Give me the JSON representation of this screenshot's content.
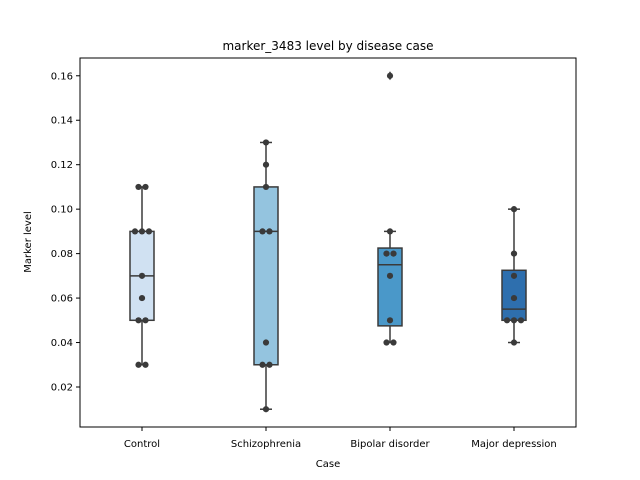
{
  "chart_data": {
    "type": "box",
    "title": "marker_3483 level by disease case",
    "xlabel": "Case",
    "ylabel": "Marker level",
    "categories": [
      "Control",
      "Schizophrenia",
      "Bipolar disorder",
      "Major depression"
    ],
    "ylim": [
      0.002,
      0.168
    ],
    "yticks": [
      0.02,
      0.04,
      0.06,
      0.08,
      0.1,
      0.12,
      0.14,
      0.16
    ],
    "ytick_labels": [
      "0.02",
      "0.04",
      "0.06",
      "0.08",
      "0.10",
      "0.12",
      "0.14",
      "0.16"
    ],
    "grid": false,
    "boxes": [
      {
        "category": "Control",
        "color": "#d0e1f2",
        "q1": 0.05,
        "median": 0.07,
        "q3": 0.09,
        "whisker_low": 0.03,
        "whisker_high": 0.11,
        "outliers": []
      },
      {
        "category": "Schizophrenia",
        "color": "#94c4df",
        "q1": 0.03,
        "median": 0.09,
        "q3": 0.11,
        "whisker_low": 0.01,
        "whisker_high": 0.13,
        "outliers": []
      },
      {
        "category": "Bipolar disorder",
        "color": "#4a98c9",
        "q1": 0.0475,
        "median": 0.075,
        "q3": 0.0825,
        "whisker_low": 0.04,
        "whisker_high": 0.09,
        "outliers": [
          0.16
        ]
      },
      {
        "category": "Major depression",
        "color": "#2e6fae",
        "q1": 0.05,
        "median": 0.055,
        "q3": 0.0725,
        "whisker_low": 0.04,
        "whisker_high": 0.1,
        "outliers": []
      }
    ],
    "points": [
      {
        "category": "Control",
        "values": [
          0.11,
          0.11,
          0.09,
          0.09,
          0.09,
          0.07,
          0.06,
          0.05,
          0.05,
          0.03,
          0.03
        ]
      },
      {
        "category": "Schizophrenia",
        "values": [
          0.13,
          0.12,
          0.11,
          0.09,
          0.09,
          0.04,
          0.03,
          0.03,
          0.01
        ]
      },
      {
        "category": "Bipolar disorder",
        "values": [
          0.16,
          0.09,
          0.08,
          0.08,
          0.07,
          0.05,
          0.04,
          0.04
        ]
      },
      {
        "category": "Major depression",
        "values": [
          0.1,
          0.08,
          0.07,
          0.06,
          0.05,
          0.05,
          0.05,
          0.04
        ]
      }
    ],
    "point_color": "#3a3a3a",
    "line_color": "#3a3a3a"
  }
}
